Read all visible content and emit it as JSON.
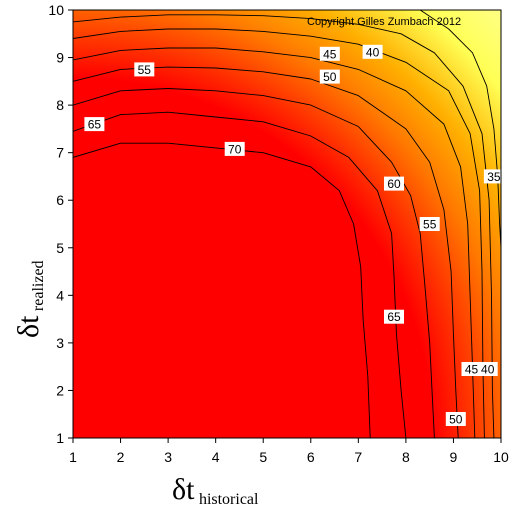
{
  "chart_data": {
    "type": "heatmap",
    "subtype": "filled-contour",
    "title": "",
    "copyright": "Copyright Gilles Zumbach 2012",
    "xlabel": {
      "symbol": "δt",
      "subscript": "historical"
    },
    "ylabel": {
      "symbol": "δt",
      "subscript": "realized"
    },
    "xlim": [
      1,
      10
    ],
    "ylim": [
      1,
      10
    ],
    "xticks": [
      "1",
      "2",
      "3",
      "4",
      "5",
      "6",
      "7",
      "8",
      "9",
      "10"
    ],
    "yticks": [
      "1",
      "2",
      "3",
      "4",
      "5",
      "6",
      "7",
      "8",
      "9",
      "10"
    ],
    "grid": false,
    "colormap": [
      "#ff0000",
      "#ff3300",
      "#ff7a00",
      "#ffb000",
      "#ffff55"
    ],
    "value_range": [
      28,
      73
    ],
    "contour_levels": [
      {
        "level": 70,
        "label": "70",
        "points": [
          [
            1,
            6.9
          ],
          [
            2,
            7.2
          ],
          [
            3,
            7.2
          ],
          [
            4,
            7.1
          ],
          [
            5,
            7.0
          ],
          [
            6,
            6.7
          ],
          [
            6.6,
            6.2
          ],
          [
            6.9,
            5.5
          ],
          [
            7.05,
            4.6
          ],
          [
            7.1,
            3.5
          ],
          [
            7.2,
            2.3
          ],
          [
            7.25,
            1
          ]
        ]
      },
      {
        "level": 65,
        "label": "65",
        "points": [
          [
            1,
            7.45
          ],
          [
            2,
            7.8
          ],
          [
            3,
            7.85
          ],
          [
            4,
            7.75
          ],
          [
            5,
            7.65
          ],
          [
            6,
            7.35
          ],
          [
            6.8,
            6.9
          ],
          [
            7.4,
            6.2
          ],
          [
            7.7,
            5.3
          ],
          [
            7.75,
            4.4
          ],
          [
            7.8,
            3.2
          ],
          [
            7.9,
            2.0
          ],
          [
            8.0,
            1
          ]
        ]
      },
      {
        "level": 60,
        "label": "60",
        "points": [
          [
            1,
            8.0
          ],
          [
            2,
            8.3
          ],
          [
            3,
            8.35
          ],
          [
            4,
            8.3
          ],
          [
            5,
            8.2
          ],
          [
            6,
            8.0
          ],
          [
            7,
            7.55
          ],
          [
            7.7,
            6.8
          ],
          [
            8.1,
            6.1
          ],
          [
            8.3,
            5.3
          ],
          [
            8.4,
            4.2
          ],
          [
            8.5,
            3.0
          ],
          [
            8.55,
            2.0
          ],
          [
            8.6,
            1
          ]
        ]
      },
      {
        "level": 55,
        "label": "55",
        "points": [
          [
            1,
            8.5
          ],
          [
            2,
            8.75
          ],
          [
            3,
            8.8
          ],
          [
            4,
            8.78
          ],
          [
            5,
            8.7
          ],
          [
            6,
            8.55
          ],
          [
            7,
            8.2
          ],
          [
            8,
            7.5
          ],
          [
            8.5,
            6.8
          ],
          [
            8.8,
            5.8
          ],
          [
            8.95,
            4.5
          ],
          [
            9.0,
            3.2
          ],
          [
            9.05,
            2.0
          ],
          [
            9.1,
            1
          ]
        ]
      },
      {
        "level": 50,
        "label": "50",
        "points": [
          [
            1,
            8.95
          ],
          [
            2,
            9.15
          ],
          [
            3,
            9.2
          ],
          [
            4,
            9.2
          ],
          [
            5,
            9.12
          ],
          [
            6,
            9.0
          ],
          [
            7,
            8.75
          ],
          [
            8,
            8.3
          ],
          [
            8.8,
            7.6
          ],
          [
            9.15,
            6.7
          ],
          [
            9.3,
            5.5
          ],
          [
            9.35,
            4.0
          ],
          [
            9.4,
            2.5
          ],
          [
            9.45,
            1
          ]
        ]
      },
      {
        "level": 45,
        "label": "45",
        "points": [
          [
            1,
            9.4
          ],
          [
            2,
            9.55
          ],
          [
            3,
            9.6
          ],
          [
            4,
            9.6
          ],
          [
            5,
            9.55
          ],
          [
            6,
            9.45
          ],
          [
            7,
            9.28
          ],
          [
            8,
            8.9
          ],
          [
            8.9,
            8.3
          ],
          [
            9.35,
            7.4
          ],
          [
            9.55,
            6.2
          ],
          [
            9.6,
            4.5
          ],
          [
            9.62,
            2.5
          ],
          [
            9.65,
            1
          ]
        ]
      },
      {
        "level": 40,
        "label": "40",
        "points": [
          [
            1,
            9.75
          ],
          [
            2,
            9.85
          ],
          [
            3,
            9.9
          ],
          [
            4,
            9.9
          ],
          [
            5,
            9.88
          ],
          [
            6,
            9.82
          ],
          [
            7,
            9.7
          ],
          [
            7.9,
            9.5
          ],
          [
            8.6,
            9.1
          ],
          [
            9.2,
            8.4
          ],
          [
            9.6,
            7.4
          ],
          [
            9.75,
            6.0
          ],
          [
            9.8,
            4.0
          ],
          [
            9.82,
            2.0
          ],
          [
            9.85,
            1
          ]
        ]
      },
      {
        "level": 35,
        "label": "35",
        "points": [
          [
            8.3,
            10
          ],
          [
            8.9,
            9.6
          ],
          [
            9.4,
            9.1
          ],
          [
            9.7,
            8.4
          ],
          [
            9.85,
            7.5
          ],
          [
            9.93,
            6.5
          ],
          [
            9.97,
            5.5
          ],
          [
            10,
            5.0
          ]
        ]
      }
    ],
    "contour_labels": [
      {
        "text": "70",
        "x": 4.4,
        "y": 7.08
      },
      {
        "text": "65",
        "x": 1.45,
        "y": 7.6
      },
      {
        "text": "65",
        "x": 7.75,
        "y": 3.55
      },
      {
        "text": "60",
        "x": 7.75,
        "y": 6.35
      },
      {
        "text": "55",
        "x": 2.5,
        "y": 8.75
      },
      {
        "text": "55",
        "x": 8.5,
        "y": 5.5
      },
      {
        "text": "50",
        "x": 6.4,
        "y": 8.6
      },
      {
        "text": "50",
        "x": 9.05,
        "y": 1.4
      },
      {
        "text": "45",
        "x": 6.4,
        "y": 9.08
      },
      {
        "text": "45",
        "x": 9.38,
        "y": 2.45
      },
      {
        "text": "40",
        "x": 7.3,
        "y": 9.12
      },
      {
        "text": "40",
        "x": 9.72,
        "y": 2.45
      },
      {
        "text": "35",
        "x": 9.85,
        "y": 6.5
      }
    ]
  }
}
